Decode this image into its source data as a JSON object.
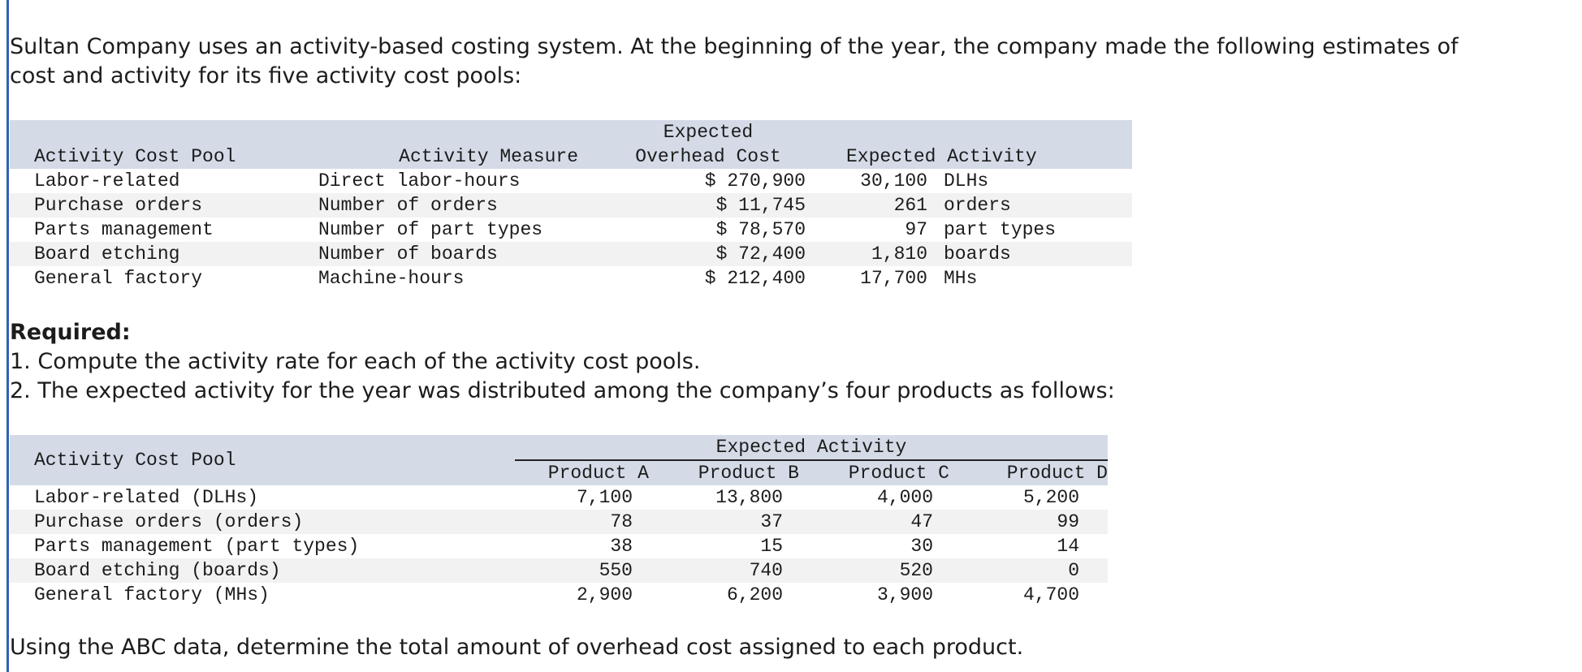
{
  "intro": {
    "line1": "Sultan Company uses an activity-based costing system. At the beginning of the year, the company made the following estimates of",
    "line2": "cost and activity for its five activity cost pools:"
  },
  "table1": {
    "headers": {
      "pool": "Activity Cost Pool",
      "measure": "Activity Measure",
      "cost_top": "Expected",
      "cost_bottom": "Overhead Cost",
      "activity": "Expected Activity"
    },
    "rows": [
      {
        "pool": "Labor-related",
        "measure": "Direct labor-hours",
        "cost": "$ 270,900",
        "qty": "30,100",
        "unit": "DLHs"
      },
      {
        "pool": "Purchase orders",
        "measure": "Number of orders",
        "cost": "$ 11,745",
        "qty": "261",
        "unit": "orders"
      },
      {
        "pool": "Parts management",
        "measure": "Number of part types",
        "cost": "$ 78,570",
        "qty": "97",
        "unit": "part types"
      },
      {
        "pool": "Board etching",
        "measure": "Number of boards",
        "cost": "$ 72,400",
        "qty": "1,810",
        "unit": "boards"
      },
      {
        "pool": "General factory",
        "measure": "Machine-hours",
        "cost": "$ 212,400",
        "qty": "17,700",
        "unit": "MHs"
      }
    ]
  },
  "required": {
    "heading": "Required:",
    "item1": "1. Compute the activity rate for each of the activity cost pools.",
    "item2": "2. The expected activity for the year was distributed among the company’s four products as follows:"
  },
  "table2": {
    "headers": {
      "pool": "Activity Cost Pool",
      "group": "Expected Activity",
      "products": [
        "Product A",
        "Product B",
        "Product C",
        "Product D"
      ]
    },
    "rows": [
      {
        "pool": "Labor-related (DLHs)",
        "values": [
          "7,100",
          "13,800",
          "4,000",
          "5,200"
        ]
      },
      {
        "pool": "Purchase orders (orders)",
        "values": [
          "78",
          "37",
          "47",
          "99"
        ]
      },
      {
        "pool": "Parts management (part types)",
        "values": [
          "38",
          "15",
          "30",
          "14"
        ]
      },
      {
        "pool": "Board etching (boards)",
        "values": [
          "550",
          "740",
          "520",
          "0"
        ]
      },
      {
        "pool": "General factory (MHs)",
        "values": [
          "2,900",
          "6,200",
          "3,900",
          "4,700"
        ]
      }
    ]
  },
  "closing": "Using the ABC data, determine the total amount of overhead cost assigned to each product."
}
